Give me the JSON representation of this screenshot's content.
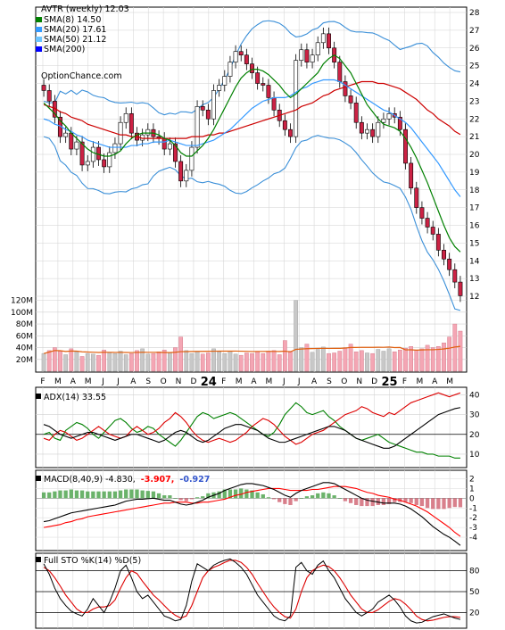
{
  "chart_data": {
    "type": "candlestick",
    "panels": {
      "price": {
        "title": "AVTR (weekly) 12.03",
        "watermark": "OptionChance.com",
        "legend": [
          {
            "label": "SMA(8) 14.50",
            "color": "#008000"
          },
          {
            "label": "SMA(20) 17.61",
            "color": "#3399ff"
          },
          {
            "label": "SMA(50) 21.12",
            "color": "#6cc4ff"
          },
          {
            "label": "SMA(200)",
            "color": "#0000ff"
          }
        ],
        "y_ticks": [
          "28",
          "27",
          "26",
          "25",
          "24",
          "23",
          "22",
          "21",
          "20",
          "19",
          "18",
          "17",
          "16",
          "15",
          "14",
          "13",
          "12"
        ],
        "ylim": [
          11.5,
          28.5
        ]
      },
      "volume": {
        "y_ticks": [
          "120M",
          "100M",
          "80M",
          "60M",
          "40M",
          "20M"
        ]
      },
      "adx": {
        "title": "ADX(14) 33.55",
        "y_ticks": [
          "40",
          "30",
          "20",
          "10"
        ]
      },
      "macd": {
        "title_prefix": "MACD(8,40,9) -4.830,",
        "signal_value": "-3.907,",
        "histogram_value": "-0.927",
        "signal_color": "#ff0000",
        "histogram_color": "#3355cc",
        "y_ticks": [
          "2",
          "1",
          "0",
          "-1",
          "-2",
          "-3",
          "-4"
        ]
      },
      "sto": {
        "title": "Full STO %K(14) %D(5)",
        "y_ticks": [
          "80",
          "50",
          "20"
        ]
      }
    },
    "x_ticks": [
      "F",
      "M",
      "A",
      "M",
      "J",
      "J",
      "A",
      "S",
      "O",
      "N",
      "D",
      "24",
      "F",
      "M",
      "A",
      "M",
      "J",
      "J",
      "A",
      "S",
      "O",
      "N",
      "D",
      "25",
      "F",
      "M",
      "A",
      "M"
    ],
    "close": [
      23.6,
      23.0,
      22.1,
      21.0,
      21.2,
      20.3,
      20.7,
      19.4,
      19.6,
      20.4,
      19.7,
      19.3,
      20.1,
      20.6,
      21.8,
      22.3,
      21.2,
      20.8,
      21.1,
      21.4,
      21.0,
      20.9,
      20.3,
      20.6,
      19.6,
      18.5,
      19.1,
      20.4,
      22.7,
      22.5,
      22.0,
      23.6,
      23.9,
      24.4,
      25.2,
      25.8,
      25.6,
      25.1,
      24.6,
      24.0,
      23.9,
      23.2,
      22.5,
      21.9,
      21.4,
      21.0,
      25.3,
      25.9,
      25.2,
      25.6,
      26.3,
      26.8,
      26.0,
      25.2,
      24.1,
      23.3,
      22.9,
      21.8,
      21.2,
      21.4,
      21.0,
      21.8,
      22.0,
      22.3,
      22.1,
      21.4,
      19.5,
      18.1,
      17.0,
      16.4,
      15.9,
      15.5,
      14.6,
      14.1,
      13.5,
      12.8,
      12.03
    ],
    "volume_m": [
      30,
      35,
      40,
      34,
      28,
      38,
      33,
      25,
      30,
      29,
      27,
      36,
      31,
      30,
      34,
      28,
      30,
      35,
      38,
      29,
      30,
      33,
      36,
      31,
      40,
      58,
      35,
      30,
      33,
      29,
      31,
      38,
      33,
      30,
      34,
      29,
      27,
      31,
      30,
      33,
      30,
      34,
      35,
      28,
      52,
      34,
      120,
      40,
      46,
      32,
      37,
      41,
      30,
      31,
      34,
      40,
      46,
      33,
      35,
      31,
      30,
      37,
      34,
      38,
      33,
      36,
      39,
      42,
      36,
      38,
      44,
      40,
      42,
      48,
      58,
      80,
      68
    ],
    "sma8": [
      22.9,
      22.6,
      22.3,
      21.9,
      21.6,
      21.2,
      20.9,
      20.6,
      20.3,
      20.1,
      20.0,
      19.9,
      19.9,
      20.0,
      20.2,
      20.6,
      20.9,
      21.1,
      21.2,
      21.2,
      21.2,
      21.1,
      20.9,
      20.8,
      20.5,
      20.1,
      19.9,
      19.9,
      20.2,
      20.5,
      20.9,
      21.4,
      22.0,
      22.6,
      23.2,
      23.8,
      24.3,
      24.6,
      24.8,
      24.8,
      24.7,
      24.5,
      24.2,
      23.9,
      23.5,
      23.2,
      23.4,
      23.7,
      24.0,
      24.3,
      24.6,
      25.1,
      25.4,
      25.6,
      25.4,
      25.0,
      24.6,
      24.0,
      23.4,
      22.8,
      22.4,
      22.0,
      21.7,
      21.6,
      21.5,
      21.3,
      20.9,
      20.4,
      19.8,
      19.1,
      18.4,
      17.6,
      16.8,
      16.0,
      15.3,
      14.8,
      14.5
    ],
    "sma20": [
      22.0,
      21.9,
      21.7,
      21.6,
      21.4,
      21.3,
      21.1,
      21.0,
      20.8,
      20.7,
      20.6,
      20.5,
      20.4,
      20.4,
      20.4,
      20.4,
      20.5,
      20.5,
      20.6,
      20.6,
      20.7,
      20.7,
      20.7,
      20.8,
      20.7,
      20.6,
      20.5,
      20.5,
      20.5,
      20.6,
      20.7,
      20.8,
      21.0,
      21.2,
      21.4,
      21.7,
      22.0,
      22.3,
      22.6,
      22.8,
      23.0,
      23.1,
      23.2,
      23.2,
      23.2,
      23.3,
      23.5,
      23.7,
      23.8,
      24.0,
      24.1,
      24.2,
      24.2,
      24.2,
      24.1,
      23.9,
      23.7,
      23.5,
      23.3,
      23.1,
      22.9,
      22.7,
      22.5,
      22.4,
      22.2,
      22.0,
      21.8,
      21.5,
      21.1,
      20.7,
      20.3,
      19.9,
      19.5,
      19.0,
      18.5,
      18.0,
      17.61
    ],
    "sma50": [
      22.8,
      22.7,
      22.6,
      22.4,
      22.3,
      22.1,
      22.0,
      21.9,
      21.7,
      21.6,
      21.5,
      21.4,
      21.3,
      21.2,
      21.1,
      21.1,
      21.0,
      21.0,
      20.9,
      20.9,
      20.9,
      20.9,
      20.9,
      20.9,
      20.9,
      20.9,
      20.9,
      21.0,
      21.0,
      21.0,
      21.1,
      21.1,
      21.2,
      21.2,
      21.3,
      21.4,
      21.5,
      21.6,
      21.7,
      21.8,
      21.9,
      22.0,
      22.1,
      22.2,
      22.3,
      22.4,
      22.5,
      22.7,
      22.8,
      22.9,
      23.1,
      23.3,
      23.4,
      23.6,
      23.7,
      23.8,
      23.9,
      24.0,
      24.1,
      24.1,
      24.1,
      24.0,
      24.0,
      23.9,
      23.8,
      23.7,
      23.5,
      23.3,
      23.1,
      22.8,
      22.5,
      22.3,
      22.0,
      21.8,
      21.6,
      21.3,
      21.12
    ],
    "adx": [
      25,
      24,
      22,
      20,
      19,
      18,
      19,
      20,
      21,
      21,
      20,
      19,
      18,
      17,
      18,
      19,
      20,
      20,
      19,
      18,
      17,
      16,
      17,
      19,
      21,
      22,
      21,
      19,
      17,
      16,
      17,
      19,
      21,
      23,
      24,
      25,
      25,
      24,
      23,
      22,
      20,
      18,
      17,
      16,
      16,
      17,
      18,
      19,
      20,
      21,
      22,
      23,
      24,
      24,
      23,
      22,
      20,
      18,
      17,
      16,
      15,
      14,
      13,
      13,
      14,
      16,
      18,
      20,
      22,
      24,
      26,
      28,
      30,
      31,
      32,
      33,
      33.55
    ],
    "pdi": [
      20,
      21,
      18,
      17,
      22,
      24,
      26,
      25,
      23,
      20,
      18,
      21,
      24,
      27,
      28,
      26,
      23,
      21,
      22,
      24,
      23,
      20,
      18,
      16,
      14,
      17,
      21,
      25,
      29,
      31,
      30,
      28,
      29,
      30,
      31,
      30,
      28,
      26,
      24,
      22,
      20,
      19,
      21,
      25,
      30,
      33,
      36,
      34,
      31,
      30,
      31,
      32,
      29,
      27,
      24,
      22,
      20,
      18,
      17,
      18,
      19,
      20,
      18,
      16,
      15,
      14,
      13,
      12,
      11,
      11,
      10,
      10,
      9,
      9,
      9,
      8,
      8
    ],
    "mdi": [
      18,
      17,
      20,
      22,
      21,
      19,
      17,
      18,
      20,
      22,
      24,
      22,
      20,
      19,
      18,
      19,
      22,
      24,
      22,
      20,
      21,
      23,
      26,
      28,
      31,
      29,
      26,
      22,
      19,
      17,
      16,
      17,
      18,
      17,
      16,
      17,
      19,
      21,
      24,
      26,
      28,
      27,
      25,
      22,
      19,
      17,
      15,
      16,
      18,
      20,
      21,
      22,
      24,
      26,
      28,
      30,
      31,
      32,
      34,
      33,
      31,
      30,
      29,
      31,
      30,
      32,
      34,
      36,
      37,
      38,
      39,
      40,
      41,
      40,
      39,
      40,
      41
    ],
    "macd": [
      -2.4,
      -2.3,
      -2.1,
      -1.9,
      -1.7,
      -1.5,
      -1.4,
      -1.3,
      -1.2,
      -1.1,
      -1.0,
      -0.9,
      -0.8,
      -0.7,
      -0.5,
      -0.3,
      -0.2,
      -0.1,
      -0.1,
      -0.05,
      0.0,
      -0.1,
      -0.2,
      -0.2,
      -0.4,
      -0.6,
      -0.7,
      -0.6,
      -0.4,
      -0.2,
      0.1,
      0.3,
      0.5,
      0.8,
      1.0,
      1.2,
      1.4,
      1.5,
      1.5,
      1.4,
      1.3,
      1.1,
      0.9,
      0.6,
      0.3,
      0.1,
      0.5,
      0.8,
      1.0,
      1.2,
      1.4,
      1.6,
      1.6,
      1.5,
      1.2,
      0.9,
      0.6,
      0.3,
      0.0,
      -0.2,
      -0.3,
      -0.4,
      -0.5,
      -0.5,
      -0.5,
      -0.6,
      -0.8,
      -1.1,
      -1.5,
      -1.9,
      -2.4,
      -2.9,
      -3.3,
      -3.7,
      -4.0,
      -4.4,
      -4.83
    ],
    "macd_signal": [
      -3.0,
      -2.9,
      -2.8,
      -2.7,
      -2.5,
      -2.4,
      -2.2,
      -2.1,
      -1.9,
      -1.8,
      -1.7,
      -1.6,
      -1.5,
      -1.4,
      -1.3,
      -1.2,
      -1.1,
      -1.0,
      -0.9,
      -0.8,
      -0.7,
      -0.6,
      -0.5,
      -0.5,
      -0.4,
      -0.4,
      -0.4,
      -0.5,
      -0.5,
      -0.4,
      -0.4,
      -0.3,
      -0.2,
      -0.1,
      0.1,
      0.3,
      0.4,
      0.6,
      0.7,
      0.8,
      0.9,
      1.0,
      1.0,
      1.0,
      0.9,
      0.8,
      0.8,
      0.8,
      0.8,
      0.9,
      0.9,
      1.0,
      1.1,
      1.2,
      1.2,
      1.2,
      1.1,
      1.0,
      0.8,
      0.6,
      0.5,
      0.3,
      0.2,
      0.1,
      -0.1,
      -0.2,
      -0.4,
      -0.6,
      -0.8,
      -1.1,
      -1.4,
      -1.8,
      -2.2,
      -2.6,
      -3.0,
      -3.5,
      -3.907
    ],
    "sto_k": [
      90,
      75,
      55,
      40,
      30,
      22,
      18,
      15,
      25,
      40,
      30,
      20,
      35,
      55,
      80,
      88,
      70,
      50,
      40,
      45,
      35,
      25,
      15,
      12,
      8,
      10,
      30,
      65,
      90,
      85,
      80,
      88,
      92,
      95,
      97,
      92,
      85,
      75,
      60,
      45,
      35,
      25,
      15,
      10,
      8,
      15,
      85,
      92,
      80,
      75,
      88,
      94,
      80,
      70,
      55,
      40,
      30,
      20,
      15,
      20,
      25,
      35,
      40,
      45,
      38,
      28,
      15,
      8,
      5,
      6,
      10,
      14,
      16,
      18,
      15,
      12,
      10
    ],
    "sto_d": [
      85,
      80,
      70,
      58,
      45,
      35,
      25,
      20,
      20,
      25,
      28,
      28,
      30,
      38,
      55,
      70,
      80,
      76,
      65,
      55,
      45,
      38,
      30,
      22,
      16,
      12,
      15,
      30,
      50,
      70,
      80,
      85,
      88,
      92,
      95,
      95,
      92,
      85,
      75,
      62,
      50,
      38,
      28,
      20,
      14,
      12,
      25,
      50,
      70,
      80,
      85,
      88,
      86,
      80,
      70,
      58,
      45,
      35,
      25,
      20,
      20,
      24,
      30,
      36,
      40,
      38,
      32,
      24,
      15,
      10,
      8,
      9,
      11,
      13,
      14,
      14,
      13
    ]
  }
}
